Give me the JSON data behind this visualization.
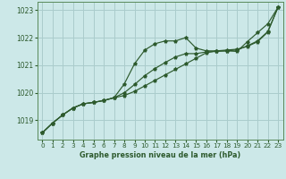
{
  "title": "Graphe pression niveau de la mer (hPa)",
  "background_color": "#cce8e8",
  "grid_color": "#aacccc",
  "line_color": "#2d5a2d",
  "xlim": [
    -0.5,
    23.5
  ],
  "ylim": [
    1018.3,
    1023.3
  ],
  "yticks": [
    1019,
    1020,
    1021,
    1022,
    1023
  ],
  "xticks": [
    0,
    1,
    2,
    3,
    4,
    5,
    6,
    7,
    8,
    9,
    10,
    11,
    12,
    13,
    14,
    15,
    16,
    17,
    18,
    19,
    20,
    21,
    22,
    23
  ],
  "series": {
    "line1_bumped": [
      1018.55,
      1018.9,
      1019.2,
      1019.45,
      1019.6,
      1019.65,
      1019.72,
      1019.82,
      1020.32,
      1021.05,
      1021.55,
      1021.78,
      1021.88,
      1021.88,
      1022.0,
      1021.62,
      1021.52,
      1021.52,
      1021.52,
      1021.5,
      1021.85,
      1022.18,
      1022.5,
      1023.1
    ],
    "line2_straight": [
      1018.55,
      1018.9,
      1019.2,
      1019.45,
      1019.6,
      1019.65,
      1019.72,
      1019.82,
      1019.9,
      1020.05,
      1020.25,
      1020.45,
      1020.65,
      1020.85,
      1021.05,
      1021.25,
      1021.45,
      1021.52,
      1021.55,
      1021.58,
      1021.68,
      1021.85,
      1022.2,
      1023.1
    ],
    "line3_mid": [
      1018.55,
      1018.9,
      1019.2,
      1019.45,
      1019.6,
      1019.65,
      1019.72,
      1019.82,
      1020.0,
      1020.3,
      1020.62,
      1020.88,
      1021.1,
      1021.3,
      1021.42,
      1021.42,
      1021.48,
      1021.5,
      1021.52,
      1021.55,
      1021.7,
      1021.88,
      1022.22,
      1023.1
    ],
    "line4_top": [
      1018.55,
      1018.9,
      1019.2,
      1019.45,
      1019.6,
      1019.65,
      1019.72,
      1019.82,
      1020.32,
      1021.05,
      1021.55,
      1021.78,
      1021.88,
      1021.88,
      1022.0,
      1021.62,
      1021.52,
      1021.52,
      1021.52,
      1021.5,
      1021.85,
      1022.18,
      1022.5,
      1023.1
    ]
  }
}
